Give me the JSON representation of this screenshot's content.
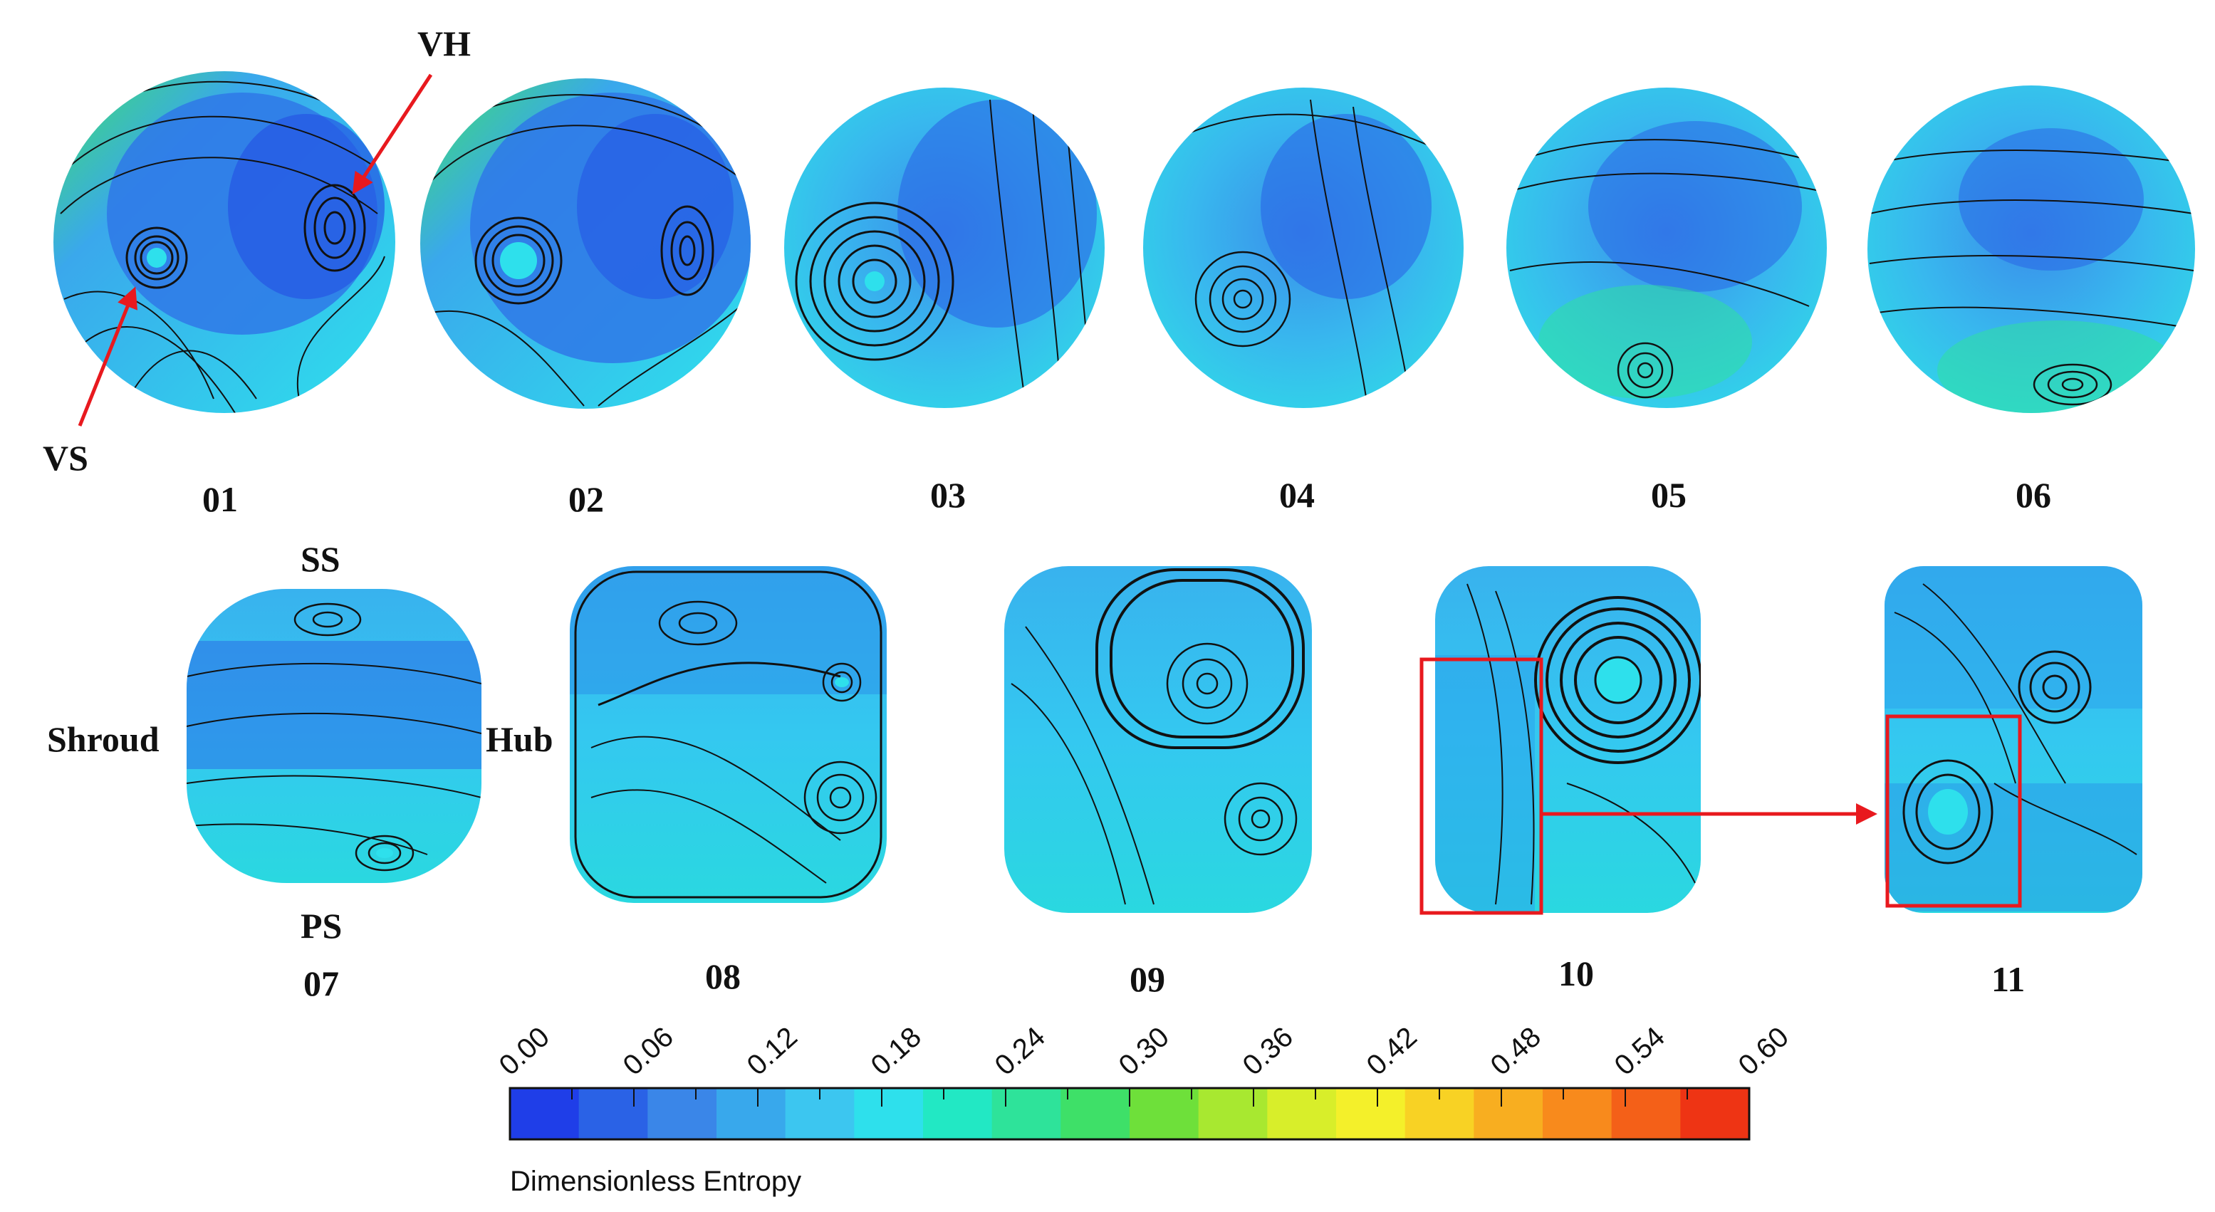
{
  "sections": [
    {
      "id": "01",
      "shape": "circle"
    },
    {
      "id": "02",
      "shape": "circle"
    },
    {
      "id": "03",
      "shape": "circle"
    },
    {
      "id": "04",
      "shape": "circle"
    },
    {
      "id": "05",
      "shape": "circle"
    },
    {
      "id": "06",
      "shape": "circle"
    },
    {
      "id": "07",
      "shape": "rounded-square"
    },
    {
      "id": "08",
      "shape": "rounded-square"
    },
    {
      "id": "09",
      "shape": "rounded-square"
    },
    {
      "id": "10",
      "shape": "rounded-square"
    },
    {
      "id": "11",
      "shape": "rounded-square"
    }
  ],
  "annotations": {
    "vortex_hub": "VH",
    "vortex_shroud": "VS",
    "suction_side": "SS",
    "pressure_side": "PS",
    "shroud": "Shroud",
    "hub": "Hub"
  },
  "colorbar": {
    "title": "Dimensionless Entropy",
    "ticks": [
      "0.00",
      "0.06",
      "0.12",
      "0.18",
      "0.24",
      "0.30",
      "0.36",
      "0.42",
      "0.48",
      "0.54",
      "0.60"
    ],
    "min": 0.0,
    "max": 0.6,
    "colors": [
      "#1f3ee8",
      "#2a62e6",
      "#3a86e8",
      "#38a8ec",
      "#3cc6f0",
      "#2ee0ec",
      "#22e8c4",
      "#2ee39a",
      "#3ee068",
      "#6ee03a",
      "#a8e830",
      "#d8ee2a",
      "#f4f02a",
      "#f8d224",
      "#f8ae20",
      "#f88a1c",
      "#f46018",
      "#ee3414"
    ]
  },
  "colors": {
    "highlight": "#e8191e",
    "arrow": "#e8191e"
  }
}
